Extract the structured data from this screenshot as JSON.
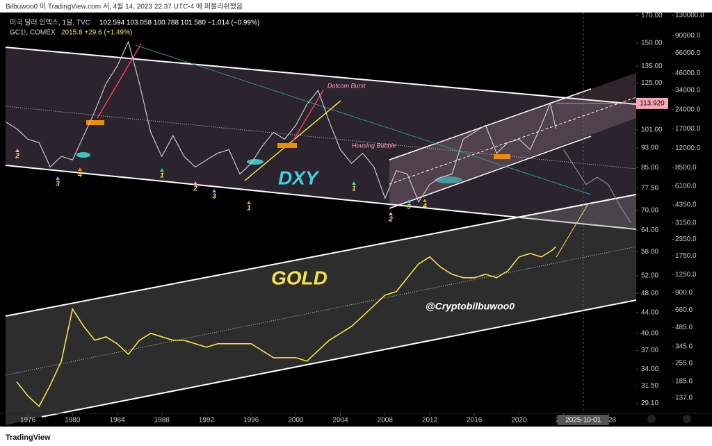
{
  "header": {
    "publish": "Bilbuwoo0 이 TradingView.com 서, 4월 14, 2023 22:37 UTC-4 에 퍼블리쉬했음",
    "dxy_quote": "102.594  103.058  100.788  101.580  −1.014 (−0.99%)",
    "gold_quote": "2015.8  +29.6 (+1.49%)",
    "footer": "TradingView"
  },
  "chart_data": {
    "type": "line",
    "log_scale": true,
    "xlim": [
      1974,
      2030.5
    ],
    "xticks": [
      1976,
      1980,
      1984,
      1988,
      1992,
      1996,
      2000,
      2004,
      2008,
      2012,
      2016,
      2020,
      2024,
      2028
    ],
    "ylim": [
      27.8,
      172.3
    ],
    "yticks": [
      {
        "value": 170,
        "label": "170.00"
      },
      {
        "value": 150,
        "label": "150.00"
      },
      {
        "value": 135,
        "label": "135.00"
      },
      {
        "value": 125,
        "label": "125.00"
      },
      {
        "value": 101,
        "label": "101.00"
      },
      {
        "value": 93,
        "label": "93.00"
      },
      {
        "value": 85,
        "label": "85.00"
      },
      {
        "value": 77.5,
        "label": "77.50"
      },
      {
        "value": 70,
        "label": "70.00"
      },
      {
        "value": 64,
        "label": "64.00"
      },
      {
        "value": 58,
        "label": "58.00"
      },
      {
        "value": 52,
        "label": "52.00"
      },
      {
        "value": 48,
        "label": "48.00"
      },
      {
        "value": 44,
        "label": "44.00"
      },
      {
        "value": 40,
        "label": "40.00"
      },
      {
        "value": 37,
        "label": "37.00"
      },
      {
        "value": 34,
        "label": "34.00"
      },
      {
        "value": 31.5,
        "label": "31.50"
      },
      {
        "value": 29.1,
        "label": "29.10"
      }
    ],
    "y2lim": [
      104,
      136700
    ],
    "y2ticks": [
      {
        "value": 130000,
        "label": "130000.0"
      },
      {
        "value": 90000,
        "label": "90000.0"
      },
      {
        "value": 66000,
        "label": "66000.0"
      },
      {
        "value": 46000,
        "label": "46000.0"
      },
      {
        "value": 34000,
        "label": "34000.0"
      },
      {
        "value": 24000,
        "label": "24000.0"
      },
      {
        "value": 17000,
        "label": "17000.0"
      },
      {
        "value": 12000,
        "label": "12000.0"
      },
      {
        "value": 8500,
        "label": "8500.0"
      },
      {
        "value": 6100,
        "label": "6100.0"
      },
      {
        "value": 4350,
        "label": "4350.0"
      },
      {
        "value": 3150,
        "label": "3150.0"
      },
      {
        "value": 2350,
        "label": "2350.0"
      },
      {
        "value": 1750,
        "label": "1750.0"
      },
      {
        "value": 1250,
        "label": "1250.0"
      },
      {
        "value": 900,
        "label": "900.0"
      },
      {
        "value": 660,
        "label": "660.0"
      },
      {
        "value": 485,
        "label": "485.0"
      },
      {
        "value": 345,
        "label": "345.0"
      },
      {
        "value": 255,
        "label": "255.0"
      },
      {
        "value": 185,
        "label": "185.0"
      },
      {
        "value": 137,
        "label": "137.0"
      }
    ],
    "price_marker": {
      "value": 113.92,
      "label": "113.920"
    },
    "crosshair_label": "2025-10-01",
    "series": [
      {
        "name": "미국 달러 인덱스, 1달, TVC",
        "color": "#c8c8cc",
        "x": [
          1974,
          1975,
          1976,
          1977,
          1978,
          1979,
          1980,
          1981,
          1982,
          1983,
          1984,
          1985,
          1986,
          1987,
          1988,
          1989,
          1990,
          1991,
          1992,
          1993,
          1994,
          1995,
          1996,
          1997,
          1998,
          1999,
          2000,
          2001,
          2002,
          2003,
          2004,
          2005,
          2006,
          2007,
          2008,
          2009,
          2010,
          2011,
          2012,
          2013,
          2014,
          2015,
          2016,
          2017,
          2018,
          2019,
          2020,
          2021,
          2022,
          2022.8,
          2023.3
        ],
        "values": [
          104.8,
          101.5,
          96.8,
          95.3,
          85.3,
          89.5,
          88.1,
          98.4,
          109.9,
          124.7,
          135,
          150.8,
          124.7,
          99.9,
          89.5,
          98.4,
          89.5,
          85.3,
          88.1,
          90.8,
          92.3,
          82.6,
          86.7,
          93.8,
          99.9,
          96.8,
          103.1,
          113.4,
          120.9,
          104.8,
          92.3,
          86.7,
          90.8,
          85.3,
          74.0,
          83.9,
          82.6,
          72.8,
          78.8,
          81.4,
          82.6,
          96.8,
          99.9,
          103.1,
          90.8,
          95.3,
          96.8,
          92.3,
          103.1,
          114.1,
          101.6
        ]
      },
      {
        "color": "#8a8a90",
        "x": [
          2024,
          2025,
          2026,
          2027,
          2028,
          2029,
          2030
        ],
        "values": [
          92.3,
          85.3,
          78.8,
          81.4,
          78.8,
          71.7,
          66.2
        ]
      },
      {
        "name": "GC1!, COMEX",
        "color": "#f5e14a",
        "axis": "y2",
        "x": [
          1975,
          1976,
          1977,
          1978,
          1979,
          1980,
          1981,
          1982,
          1983,
          1984,
          1985,
          1986,
          1987,
          1988,
          1989,
          1990,
          1991,
          1992,
          1993,
          1994,
          1995,
          1996,
          1997,
          1998,
          1999,
          2000,
          2001,
          2002,
          2003,
          2004,
          2005,
          2006,
          2007,
          2008,
          2009,
          2010,
          2011,
          2012,
          2013,
          2014,
          2015,
          2016,
          2017,
          2018,
          2019,
          2020,
          2021,
          2022,
          2023,
          2023.3
        ],
        "values": [
          183,
          142,
          118,
          172,
          265,
          675,
          494,
          385,
          410,
          362,
          300,
          385,
          436,
          410,
          385,
          385,
          362,
          340,
          362,
          362,
          362,
          362,
          320,
          282,
          282,
          282,
          265,
          320,
          385,
          436,
          494,
          595,
          717,
          865,
          920,
          1181,
          1513,
          1715,
          1422,
          1256,
          1181,
          1181,
          1256,
          1181,
          1336,
          1715,
          1825,
          1715,
          1941,
          2065
        ]
      }
    ],
    "annotations": {
      "dxy": "DXY",
      "gold": "GOLD",
      "author": "@Cryptobilbuwoo0",
      "dotcom": "Dotcom Burst",
      "housing": "Housing Bubble"
    },
    "wave_labels": [
      "2",
      "3",
      "4",
      "1",
      "2",
      "3",
      "1",
      "1",
      "2",
      "3",
      "4"
    ]
  }
}
